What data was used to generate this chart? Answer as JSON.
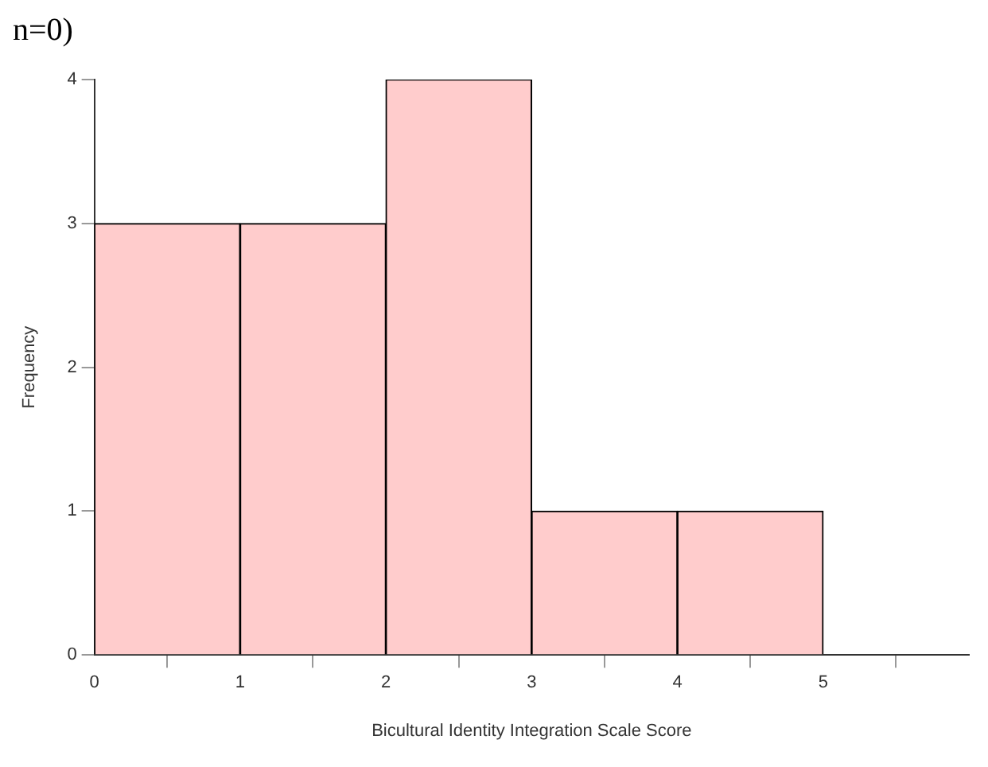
{
  "chart_data": {
    "type": "histogram",
    "annotations": [
      "n=0)"
    ],
    "xlabel": "Bicultural Identity Integration Scale Score",
    "ylabel": "Frequency",
    "bins": [
      0,
      1,
      2,
      3,
      4,
      5
    ],
    "values": [
      3,
      3,
      4,
      1,
      1
    ],
    "color": "#ffcccc",
    "xlim": [
      0,
      6
    ],
    "xticks": [
      0,
      1,
      2,
      3,
      4,
      5
    ],
    "ylim": [
      0,
      4
    ],
    "yticks": [
      0,
      1,
      2,
      3,
      4
    ],
    "grid": false,
    "legend": false
  }
}
